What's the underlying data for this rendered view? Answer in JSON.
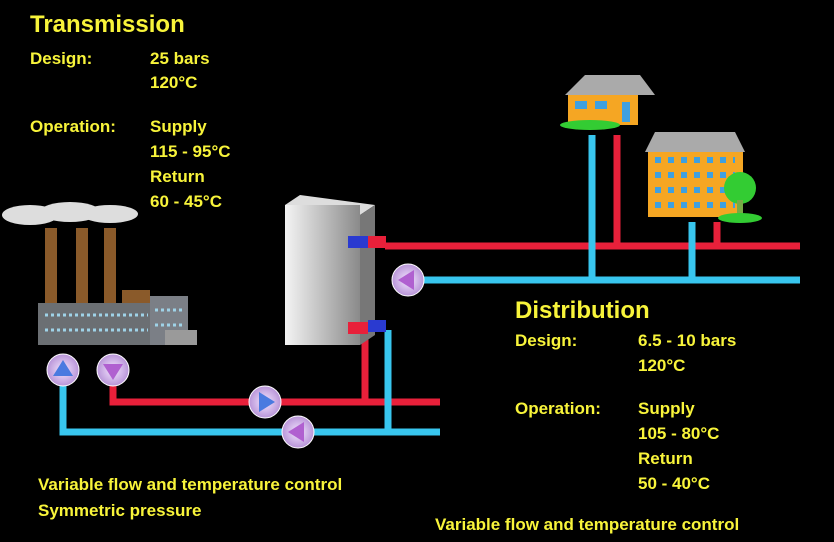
{
  "transmission": {
    "title": "Transmission",
    "design_label": "Design:",
    "design": [
      "25 bars",
      "120°C"
    ],
    "operation_label": "Operation:",
    "operation": [
      "Supply",
      "115 - 95°C",
      "Return",
      "60 - 45°C"
    ]
  },
  "distribution": {
    "title": "Distribution",
    "design_label": "Design:",
    "design": [
      "6.5 - 10 bars",
      "120°C"
    ],
    "operation_label": "Operation:",
    "operation": [
      "Supply",
      "105 - 80°C",
      "Return",
      "50 - 40°C"
    ]
  },
  "transmission_notes": [
    "Variable flow and temperature control",
    "Symmetric pressure"
  ],
  "distribution_note": "Variable flow and temperature control"
}
